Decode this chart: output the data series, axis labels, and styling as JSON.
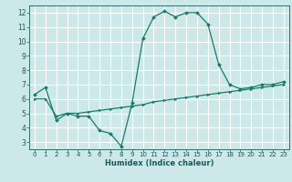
{
  "title": "",
  "xlabel": "Humidex (Indice chaleur)",
  "ylabel": "",
  "background_color": "#cce8e8",
  "grid_color": "#ffffff",
  "line_color": "#1a7a6a",
  "xlim": [
    -0.5,
    23.5
  ],
  "ylim": [
    2.5,
    12.5
  ],
  "x_ticks": [
    0,
    1,
    2,
    3,
    4,
    5,
    6,
    7,
    8,
    9,
    10,
    11,
    12,
    13,
    14,
    15,
    16,
    17,
    18,
    19,
    20,
    21,
    22,
    23
  ],
  "y_ticks": [
    3,
    4,
    5,
    6,
    7,
    8,
    9,
    10,
    11,
    12
  ],
  "series1_x": [
    0,
    1,
    2,
    3,
    4,
    5,
    6,
    7,
    8,
    9,
    10,
    11,
    12,
    13,
    14,
    15,
    16,
    17,
    18,
    19,
    20,
    21,
    22,
    23
  ],
  "series1_y": [
    6.3,
    6.8,
    4.5,
    5.0,
    4.8,
    4.8,
    3.8,
    3.6,
    2.7,
    5.7,
    10.2,
    11.7,
    12.1,
    11.7,
    12.0,
    12.0,
    11.2,
    8.4,
    7.0,
    6.7,
    6.8,
    7.0,
    7.0,
    7.2
  ],
  "series2_x": [
    0,
    1,
    2,
    3,
    4,
    5,
    6,
    7,
    8,
    9,
    10,
    11,
    12,
    13,
    14,
    15,
    16,
    17,
    18,
    19,
    20,
    21,
    22,
    23
  ],
  "series2_y": [
    6.0,
    6.0,
    4.8,
    5.0,
    5.0,
    5.1,
    5.2,
    5.3,
    5.4,
    5.5,
    5.6,
    5.8,
    5.9,
    6.0,
    6.1,
    6.2,
    6.3,
    6.4,
    6.5,
    6.6,
    6.7,
    6.8,
    6.9,
    7.0
  ],
  "marker_size": 2.0,
  "linewidth": 0.9,
  "tick_fontsize": 5.0,
  "xlabel_fontsize": 6.0
}
